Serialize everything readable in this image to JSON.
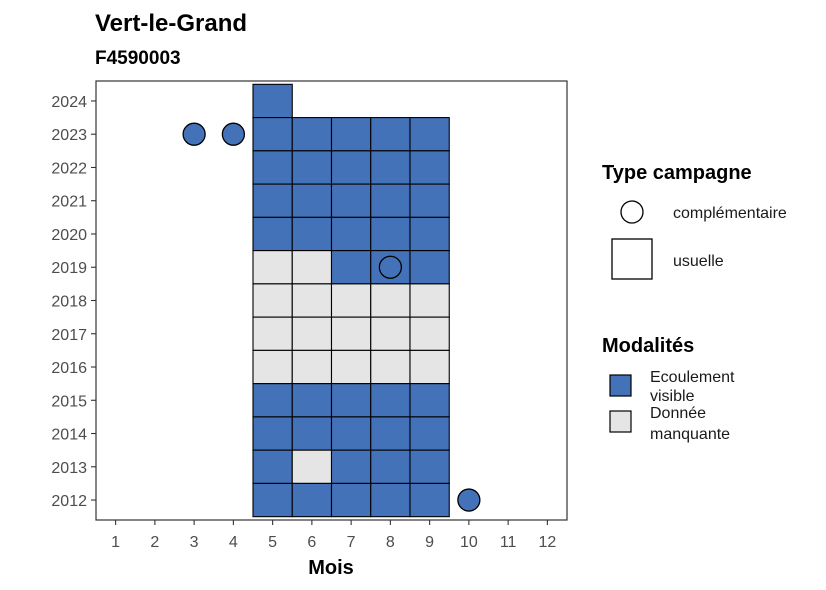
{
  "chart_data": {
    "type": "heatmap",
    "title": "Vert-le-Grand",
    "subtitle": "F4590003",
    "xlabel": "Mois",
    "ylabel": "",
    "x_ticks": [
      "1",
      "2",
      "3",
      "4",
      "5",
      "6",
      "7",
      "8",
      "9",
      "10",
      "11",
      "12"
    ],
    "y_ticks": [
      "2012",
      "2013",
      "2014",
      "2015",
      "2016",
      "2017",
      "2018",
      "2019",
      "2020",
      "2021",
      "2022",
      "2023",
      "2024"
    ],
    "xlim": [
      0.5,
      12.5
    ],
    "ylim": [
      2011.4,
      2024.6
    ],
    "grid": false,
    "legend_placement": "right",
    "colors": {
      "visible": "#4472B8",
      "missing": "#E5E5E5"
    },
    "legends": {
      "type": {
        "title": "Type campagne",
        "items": [
          {
            "label": "complémentaire",
            "shape": "circle"
          },
          {
            "label": "usuelle",
            "shape": "square"
          }
        ]
      },
      "modalites": {
        "title": "Modalités",
        "items": [
          {
            "key": "visible",
            "label_lines": [
              "Ecoulement",
              "visible"
            ]
          },
          {
            "key": "missing",
            "label_lines": [
              "Donnée",
              "manquante"
            ]
          }
        ]
      }
    },
    "tiles": [
      {
        "year": 2024,
        "months": {
          "5": "visible"
        }
      },
      {
        "year": 2023,
        "months": {
          "5": "visible",
          "6": "visible",
          "7": "visible",
          "8": "visible",
          "9": "visible"
        }
      },
      {
        "year": 2022,
        "months": {
          "5": "visible",
          "6": "visible",
          "7": "visible",
          "8": "visible",
          "9": "visible"
        }
      },
      {
        "year": 2021,
        "months": {
          "5": "visible",
          "6": "visible",
          "7": "visible",
          "8": "visible",
          "9": "visible"
        }
      },
      {
        "year": 2020,
        "months": {
          "5": "visible",
          "6": "visible",
          "7": "visible",
          "8": "visible",
          "9": "visible"
        }
      },
      {
        "year": 2019,
        "months": {
          "5": "missing",
          "6": "missing",
          "7": "visible",
          "8": "visible",
          "9": "visible"
        }
      },
      {
        "year": 2018,
        "months": {
          "5": "missing",
          "6": "missing",
          "7": "missing",
          "8": "missing",
          "9": "missing"
        }
      },
      {
        "year": 2017,
        "months": {
          "5": "missing",
          "6": "missing",
          "7": "missing",
          "8": "missing",
          "9": "missing"
        }
      },
      {
        "year": 2016,
        "months": {
          "5": "missing",
          "6": "missing",
          "7": "missing",
          "8": "missing",
          "9": "missing"
        }
      },
      {
        "year": 2015,
        "months": {
          "5": "visible",
          "6": "visible",
          "7": "visible",
          "8": "visible",
          "9": "visible"
        }
      },
      {
        "year": 2014,
        "months": {
          "5": "visible",
          "6": "visible",
          "7": "visible",
          "8": "visible",
          "9": "visible"
        }
      },
      {
        "year": 2013,
        "months": {
          "5": "visible",
          "6": "missing",
          "7": "visible",
          "8": "visible",
          "9": "visible"
        }
      },
      {
        "year": 2012,
        "months": {
          "5": "visible",
          "6": "visible",
          "7": "visible",
          "8": "visible",
          "9": "visible"
        }
      }
    ],
    "points": [
      {
        "year": 2023,
        "month": 3,
        "modalite": "visible"
      },
      {
        "year": 2023,
        "month": 4,
        "modalite": "visible"
      },
      {
        "year": 2019,
        "month": 8,
        "modalite": "visible"
      },
      {
        "year": 2012,
        "month": 10,
        "modalite": "visible"
      }
    ]
  }
}
